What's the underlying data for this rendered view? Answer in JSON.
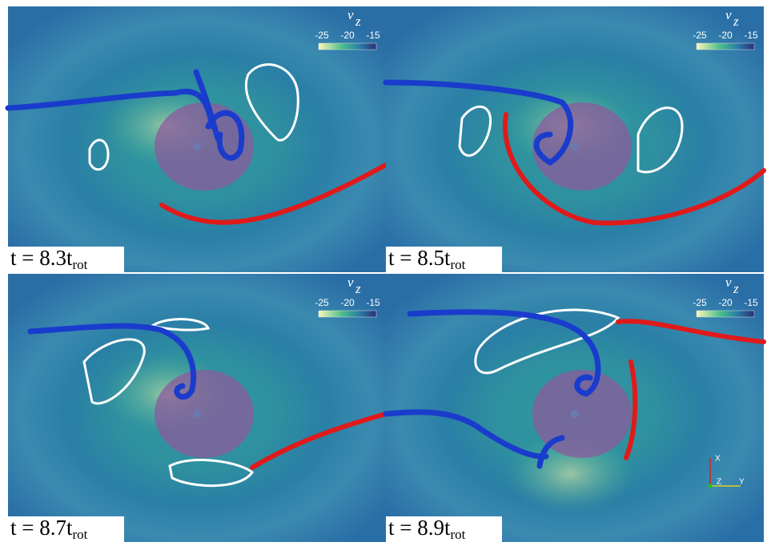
{
  "panels": [
    {
      "time_label": {
        "text": "t = 8.3t",
        "sub": "rot"
      },
      "colorbar": {
        "title": "v",
        "title_sub": "z",
        "ticks": [
          -25,
          -20,
          -15
        ]
      }
    },
    {
      "time_label": {
        "text": "t = 8.5t",
        "sub": "rot"
      },
      "colorbar": {
        "title": "v",
        "title_sub": "z",
        "ticks": [
          -25,
          -20,
          -15
        ]
      }
    },
    {
      "time_label": {
        "text": "t = 8.7t",
        "sub": "rot"
      },
      "colorbar": {
        "title": "v",
        "title_sub": "z",
        "ticks": [
          -25,
          -20,
          -15
        ]
      }
    },
    {
      "time_label": {
        "text": "t = 8.9t",
        "sub": "rot"
      },
      "colorbar": {
        "title": "v",
        "title_sub": "z",
        "ticks": [
          -25,
          -20,
          -15
        ]
      },
      "axes_triad": [
        "X",
        "Z",
        "Y"
      ]
    }
  ]
}
